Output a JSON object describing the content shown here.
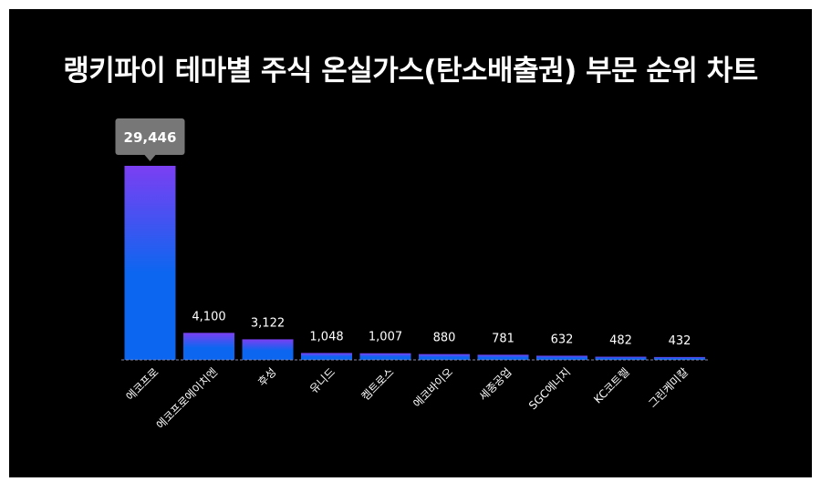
{
  "chart_data": {
    "type": "bar",
    "title": "랭키파이 테마별 주식 온실가스(탄소배출권) 부문 순위 차트",
    "categories": [
      "에코프로",
      "에코프로에이치엔",
      "후성",
      "유니드",
      "켐트로스",
      "에코바이오",
      "세종공업",
      "SGC에너지",
      "KC코트렐",
      "그린케미칼"
    ],
    "values": [
      29446,
      4100,
      3122,
      1048,
      1007,
      880,
      781,
      632,
      482,
      432
    ],
    "value_labels": [
      "29,446",
      "4,100",
      "3,122",
      "1,048",
      "1,007",
      "880",
      "781",
      "632",
      "482",
      "432"
    ],
    "highlight_index": 0,
    "ylim": [
      0,
      29446
    ],
    "grid": false,
    "colors": {
      "bar_top": "#7b3ff2",
      "bar_bottom": "#0d66f0",
      "background": "#000000",
      "text": "#ffffff",
      "tooltip": "#777777"
    }
  }
}
